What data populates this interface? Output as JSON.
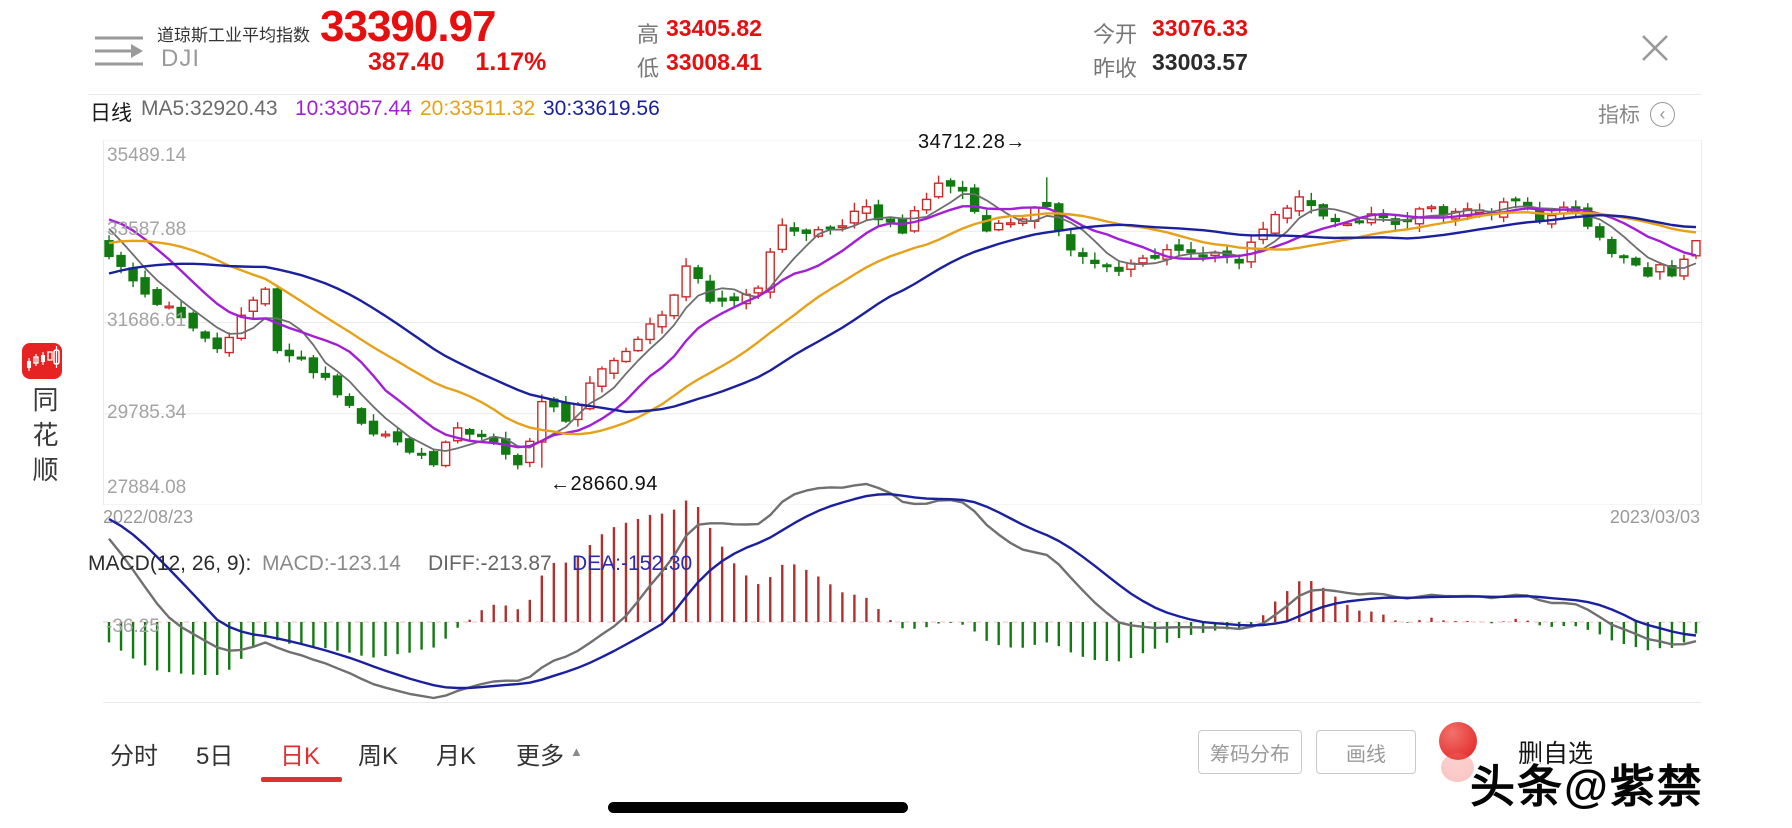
{
  "sidebar": {
    "app_name": "同花顺"
  },
  "header": {
    "stock_name": "道琼斯工业平均指数",
    "symbol": "DJI",
    "price": "33390.97",
    "change": "387.40",
    "change_pct": "1.17%",
    "high_label": "高",
    "high": "33405.82",
    "low_label": "低",
    "low": "33008.41",
    "open_label": "今开",
    "open": "33076.33",
    "prev_close_label": "昨收",
    "prev_close": "33003.57"
  },
  "ma_bar": {
    "period": "日线",
    "ma5": "MA5:32920.43",
    "ma10": "10:33057.44",
    "ma20": "20:33511.32",
    "ma30": "30:33619.56",
    "indicator_label": "指标",
    "indicator_chevron": "‹"
  },
  "macd_bar": {
    "title": "MACD(12, 26, 9):",
    "macd": "MACD:-123.14",
    "diff": "DIFF:-213.87",
    "dea": "DEA:-152.30",
    "axis_label": "-36.25"
  },
  "tabs": {
    "items": [
      "分时",
      "5日",
      "日K",
      "周K",
      "月K",
      "更多"
    ],
    "active": "日K",
    "more_caret": "▲"
  },
  "actions": {
    "chip_distribution": "筹码分布",
    "draw_line": "画线",
    "delete_watchlist": "删自选"
  },
  "watermark": "头条@紫禁",
  "colors": {
    "accent_red": "#e60f0f",
    "up_candle": "#cf2727",
    "down_candle": "#117a11",
    "ma5": "#6e6e6e",
    "ma10": "#a21fd6",
    "ma20": "#e6a118",
    "ma30": "#1a209e",
    "macd_diff_line": "#707070",
    "macd_dea_line": "#1a209e",
    "macd_pos_bar": "#b03030",
    "macd_neg_bar": "#117a11",
    "grid": "#ebebeb"
  },
  "chart_data": {
    "type": "candlestick",
    "title": "DJI 日K (daily candlestick with MA5/10/20/30 and MACD)",
    "y_ticks": [
      "35489.14",
      "33587.88",
      "31686.61",
      "29785.34",
      "27884.08"
    ],
    "y_range": [
      27884.08,
      35489.14
    ],
    "x_start_date": "2022/08/23",
    "x_end_date": "2023/03/03",
    "annotation_high": "34712.28→",
    "annotation_low": "←28660.94",
    "marked_high": 34712.28,
    "marked_low": 28660.94,
    "high_index": 78,
    "low_index": 36,
    "num_candles": 133,
    "ma_periods": [
      5,
      10,
      20,
      30
    ],
    "macd_params": [
      12,
      26,
      9
    ],
    "macd_values": {
      "macd": -123.14,
      "diff": -213.87,
      "dea": -152.3
    },
    "close_keyframes": [
      [
        -30,
        30850
      ],
      [
        -25,
        31450
      ],
      [
        -20,
        31900
      ],
      [
        -14,
        32900
      ],
      [
        -8,
        33980
      ],
      [
        -4,
        34152
      ],
      [
        -2,
        33700
      ],
      [
        0,
        33064
      ],
      [
        3,
        32283
      ],
      [
        6,
        31790
      ],
      [
        9,
        31145
      ],
      [
        12,
        32151
      ],
      [
        13,
        32381
      ],
      [
        14,
        31104
      ],
      [
        16,
        30962
      ],
      [
        19,
        30184
      ],
      [
        21,
        29591
      ],
      [
        24,
        29203
      ],
      [
        27,
        28726
      ],
      [
        29,
        29491
      ],
      [
        32,
        29203
      ],
      [
        34,
        28726
      ],
      [
        35,
        29211
      ],
      [
        36,
        30038
      ],
      [
        38,
        29634
      ],
      [
        40,
        30424
      ],
      [
        43,
        31083
      ],
      [
        46,
        31840
      ],
      [
        48,
        32862
      ],
      [
        50,
        32133
      ],
      [
        52,
        32147
      ],
      [
        54,
        32403
      ],
      [
        56,
        33715
      ],
      [
        58,
        33546
      ],
      [
        61,
        33700
      ],
      [
        63,
        34098
      ],
      [
        66,
        33554
      ],
      [
        69,
        34589
      ],
      [
        71,
        34430
      ],
      [
        73,
        33597
      ],
      [
        78,
        34108
      ],
      [
        80,
        33202
      ],
      [
        82,
        32920
      ],
      [
        84,
        32757
      ],
      [
        86,
        33027
      ],
      [
        88,
        33204
      ],
      [
        90,
        33147
      ],
      [
        92,
        33136
      ],
      [
        94,
        32930
      ],
      [
        96,
        33630
      ],
      [
        99,
        34303
      ],
      [
        101,
        33910
      ],
      [
        103,
        33743
      ],
      [
        105,
        33949
      ],
      [
        107,
        33734
      ],
      [
        109,
        34053
      ],
      [
        111,
        33926
      ],
      [
        113,
        34053
      ],
      [
        115,
        33949
      ],
      [
        117,
        34246
      ],
      [
        119,
        33827
      ],
      [
        121,
        34089
      ],
      [
        123,
        33696
      ],
      [
        125,
        33129
      ],
      [
        127,
        32889
      ],
      [
        128,
        32657
      ],
      [
        129,
        32889
      ],
      [
        130,
        32662
      ],
      [
        131,
        33003.57
      ],
      [
        132,
        33390.97
      ]
    ]
  }
}
